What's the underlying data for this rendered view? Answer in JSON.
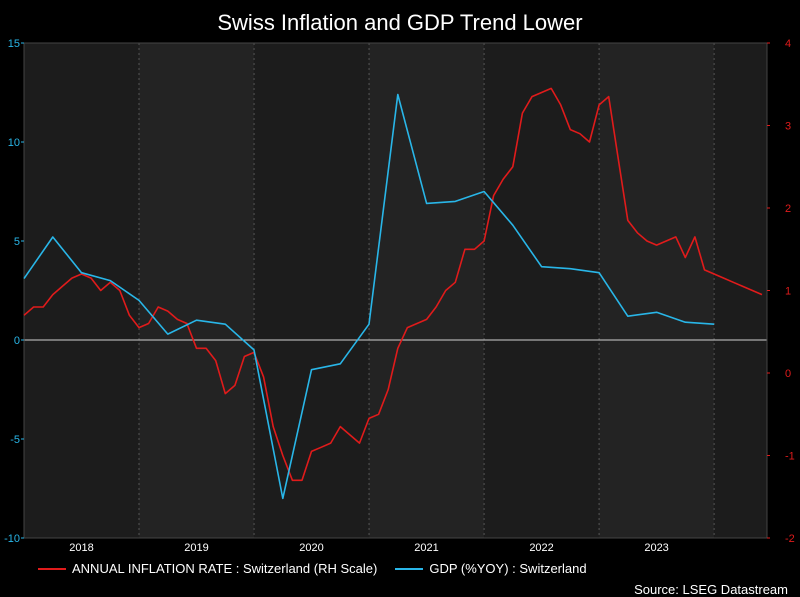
{
  "chart_data": {
    "type": "line",
    "title": "Swiss Inflation and GDP Trend Lower",
    "source": "Source: LSEG Datastream",
    "x_tick_labels": [
      "2018",
      "2019",
      "2020",
      "2021",
      "2022",
      "2023"
    ],
    "y_left": {
      "ticks": [
        "15",
        "10",
        "5",
        "0",
        "-5",
        "-10"
      ],
      "range": [
        -10,
        15
      ],
      "color": "#29b6e8"
    },
    "y_right": {
      "ticks": [
        "4",
        "3",
        "2",
        "1",
        "0",
        "-1",
        "-2"
      ],
      "range": [
        -2,
        4
      ],
      "color": "#e01b1b"
    },
    "grid": "vertical dotted at year boundaries",
    "legend_position": "bottom-left",
    "series": [
      {
        "name": "ANNUAL INFLATION RATE : Switzerland (RH Scale)",
        "axis": "right",
        "color": "#e01b1b",
        "x": [
          "2017-07",
          "2017-08",
          "2017-09",
          "2017-10",
          "2017-11",
          "2017-12",
          "2018-01",
          "2018-02",
          "2018-03",
          "2018-04",
          "2018-05",
          "2018-06",
          "2018-07",
          "2018-08",
          "2018-09",
          "2018-10",
          "2018-11",
          "2018-12",
          "2019-01",
          "2019-02",
          "2019-03",
          "2019-04",
          "2019-05",
          "2019-06",
          "2019-07",
          "2019-08",
          "2019-09",
          "2019-10",
          "2019-11",
          "2019-12",
          "2020-01",
          "2020-02",
          "2020-03",
          "2020-04",
          "2020-05",
          "2020-06",
          "2020-07",
          "2020-08",
          "2020-09",
          "2020-10",
          "2020-11",
          "2020-12",
          "2021-01",
          "2021-02",
          "2021-03",
          "2021-04",
          "2021-05",
          "2021-06",
          "2021-07",
          "2021-08",
          "2021-09",
          "2021-10",
          "2021-11",
          "2021-12",
          "2022-01",
          "2022-02",
          "2022-03",
          "2022-04",
          "2022-05",
          "2022-06",
          "2022-07",
          "2022-08",
          "2022-09",
          "2022-10",
          "2022-11",
          "2022-12",
          "2023-01",
          "2023-02",
          "2023-03",
          "2023-04",
          "2023-05",
          "2023-06",
          "2023-07",
          "2023-08",
          "2023-09",
          "2023-10",
          "2023-11",
          "2023-12"
        ],
        "values": [
          0.7,
          0.8,
          0.8,
          0.95,
          1.05,
          1.15,
          1.2,
          1.15,
          1.0,
          1.1,
          1.0,
          0.7,
          0.55,
          0.6,
          0.8,
          0.75,
          0.65,
          0.6,
          0.3,
          0.3,
          0.15,
          -0.25,
          -0.15,
          0.2,
          0.25,
          -0.05,
          -0.65,
          -1.0,
          -1.3,
          -1.3,
          -0.95,
          -0.9,
          -0.85,
          -0.65,
          -0.75,
          -0.85,
          -0.55,
          -0.5,
          -0.2,
          0.3,
          0.55,
          0.6,
          0.65,
          0.8,
          1.0,
          1.1,
          1.5,
          1.5,
          1.6,
          2.15,
          2.35,
          2.5,
          3.15,
          3.35,
          3.4,
          3.45,
          3.25,
          2.95,
          2.9,
          2.8,
          3.25,
          3.35,
          2.6,
          1.85,
          1.7,
          1.6,
          1.55,
          1.6,
          1.65,
          1.4,
          1.65,
          1.25,
          1.2,
          1.15,
          1.1,
          1.05,
          1.0,
          0.95
        ]
      },
      {
        "name": "GDP (%YOY) : Switzerland",
        "axis": "left",
        "color": "#29b6e8",
        "x": [
          "2017-07",
          "2017-10",
          "2018-01",
          "2018-04",
          "2018-07",
          "2018-10",
          "2019-01",
          "2019-04",
          "2019-07",
          "2019-10",
          "2020-01",
          "2020-04",
          "2020-07",
          "2020-10",
          "2021-01",
          "2021-04",
          "2021-07",
          "2021-10",
          "2022-01",
          "2022-04",
          "2022-07",
          "2022-10",
          "2023-01",
          "2023-04",
          "2023-07"
        ],
        "values": [
          3.1,
          5.2,
          3.4,
          3.0,
          2.0,
          0.3,
          1.0,
          0.8,
          -0.5,
          -8.0,
          -1.5,
          -1.2,
          0.8,
          12.4,
          6.9,
          7.0,
          7.5,
          5.8,
          3.7,
          3.6,
          3.4,
          1.2,
          1.4,
          0.9,
          0.8
        ]
      }
    ]
  }
}
